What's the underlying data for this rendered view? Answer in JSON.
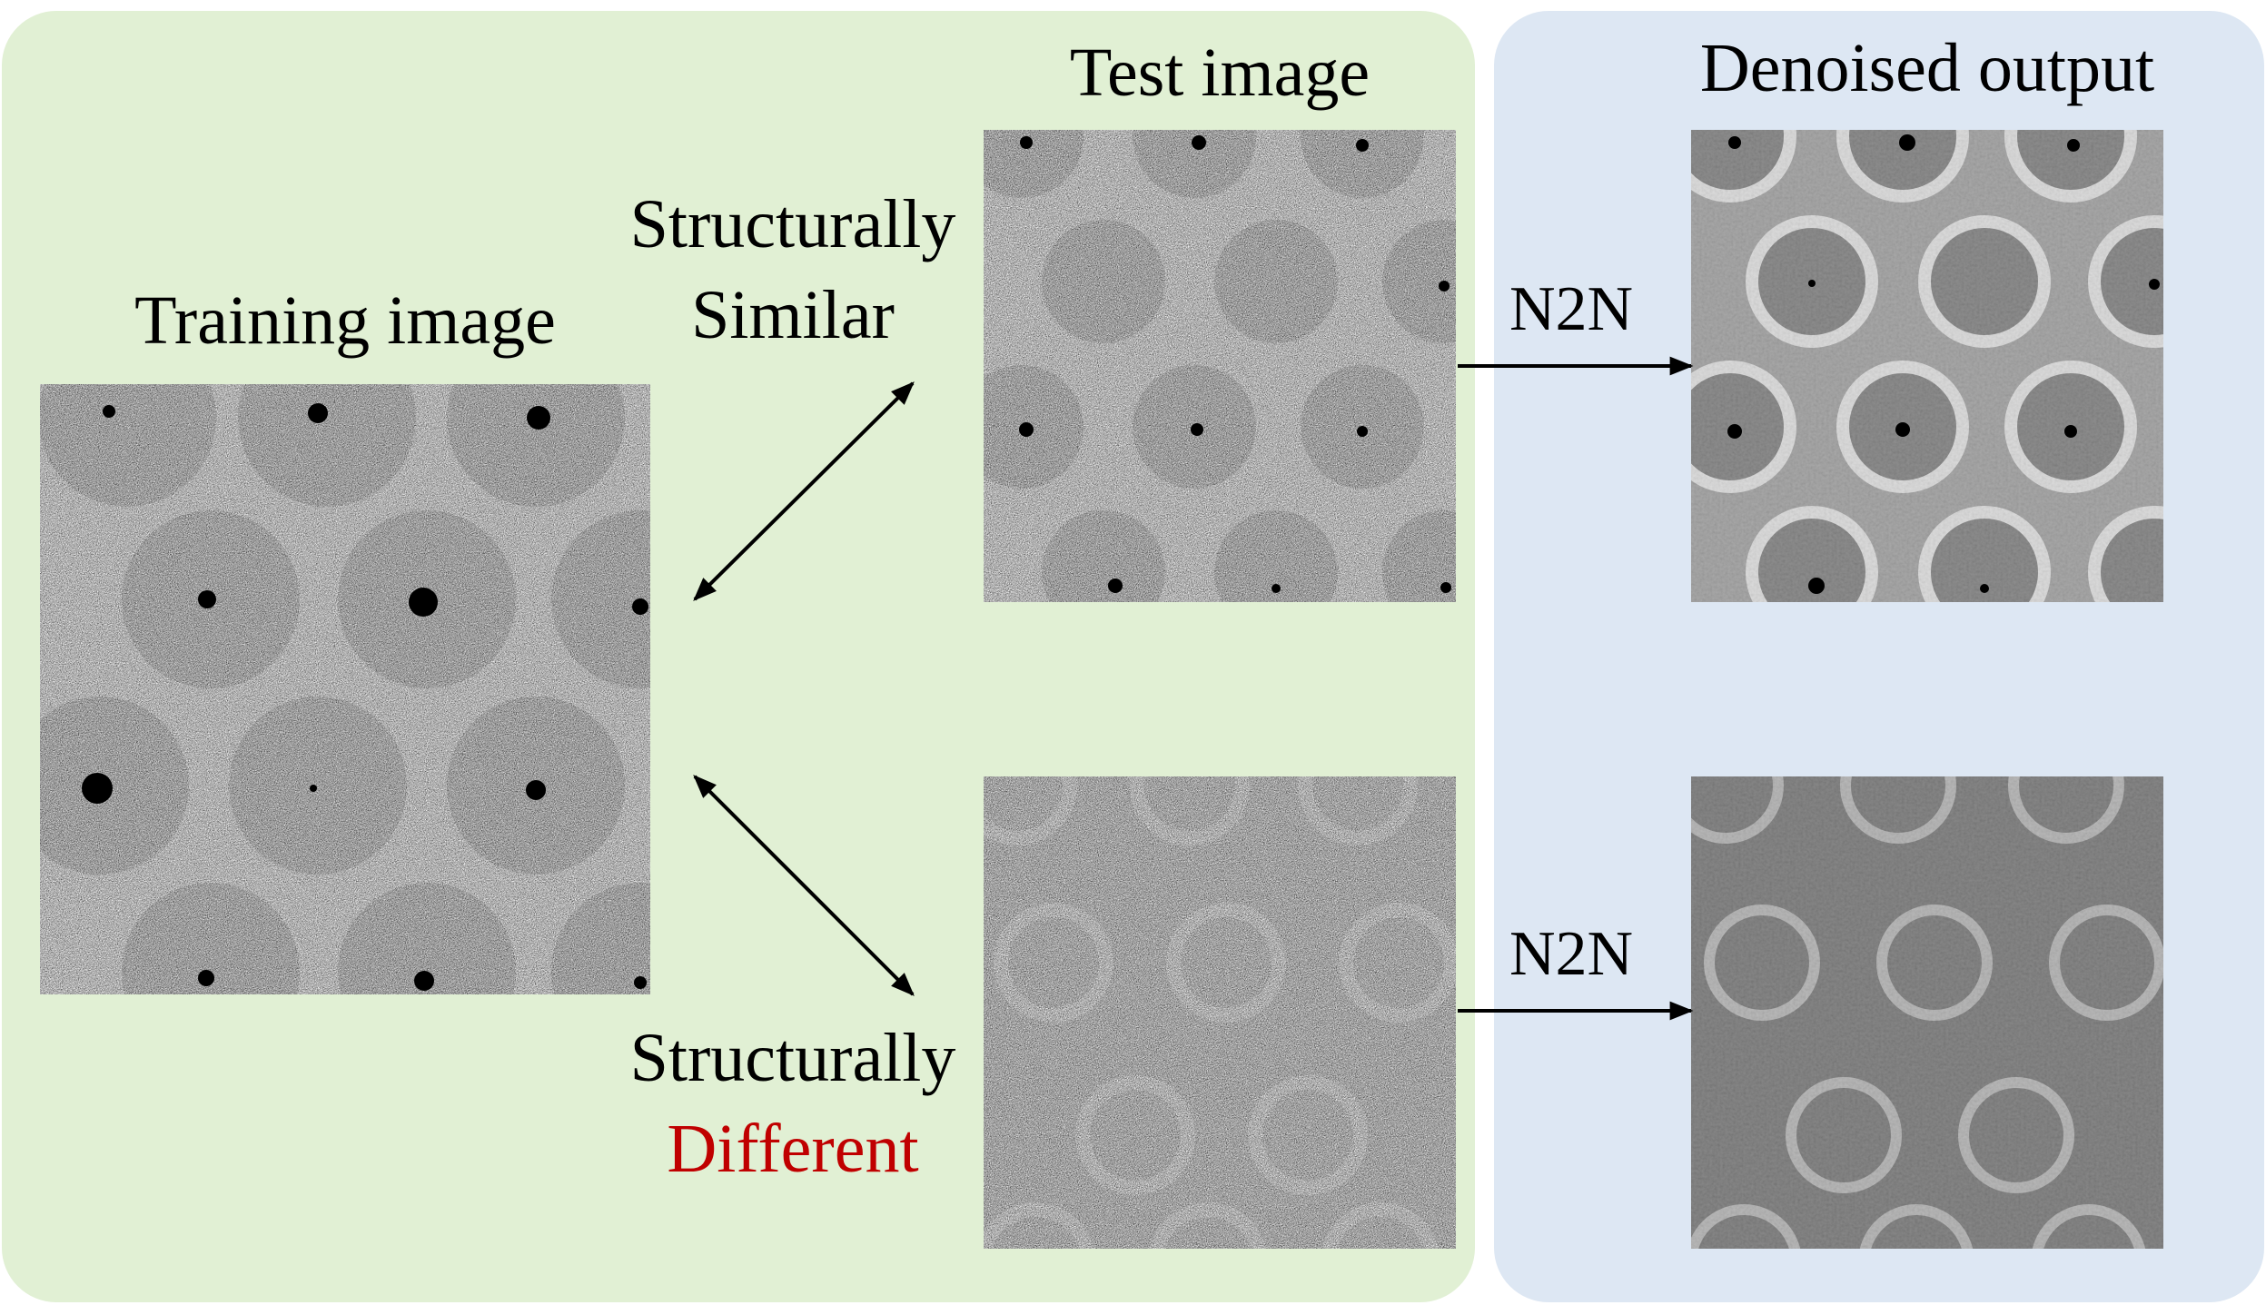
{
  "colors": {
    "left_panel": "#e1f0d4",
    "right_panel": "#dde7f3",
    "highlight": "#c00000",
    "arrow": "#000000"
  },
  "labels": {
    "training_image": "Training image",
    "test_image": "Test image",
    "denoised_output": "Denoised output",
    "similar_line1": "Structurally",
    "similar_line2": "Similar",
    "different_line1": "Structurally",
    "different_line2": "Different",
    "n2n_top": "N2N",
    "n2n_bottom": "N2N"
  },
  "images": {
    "training": "noisy SEM image of circular pores with dark centres",
    "test_similar": "noisy SEM image of similar circular pores",
    "test_different": "noisy SEM image of faint ring structures",
    "denoised_similar": "denoised image of circular pores",
    "denoised_different": "denoised image of ring structures"
  }
}
